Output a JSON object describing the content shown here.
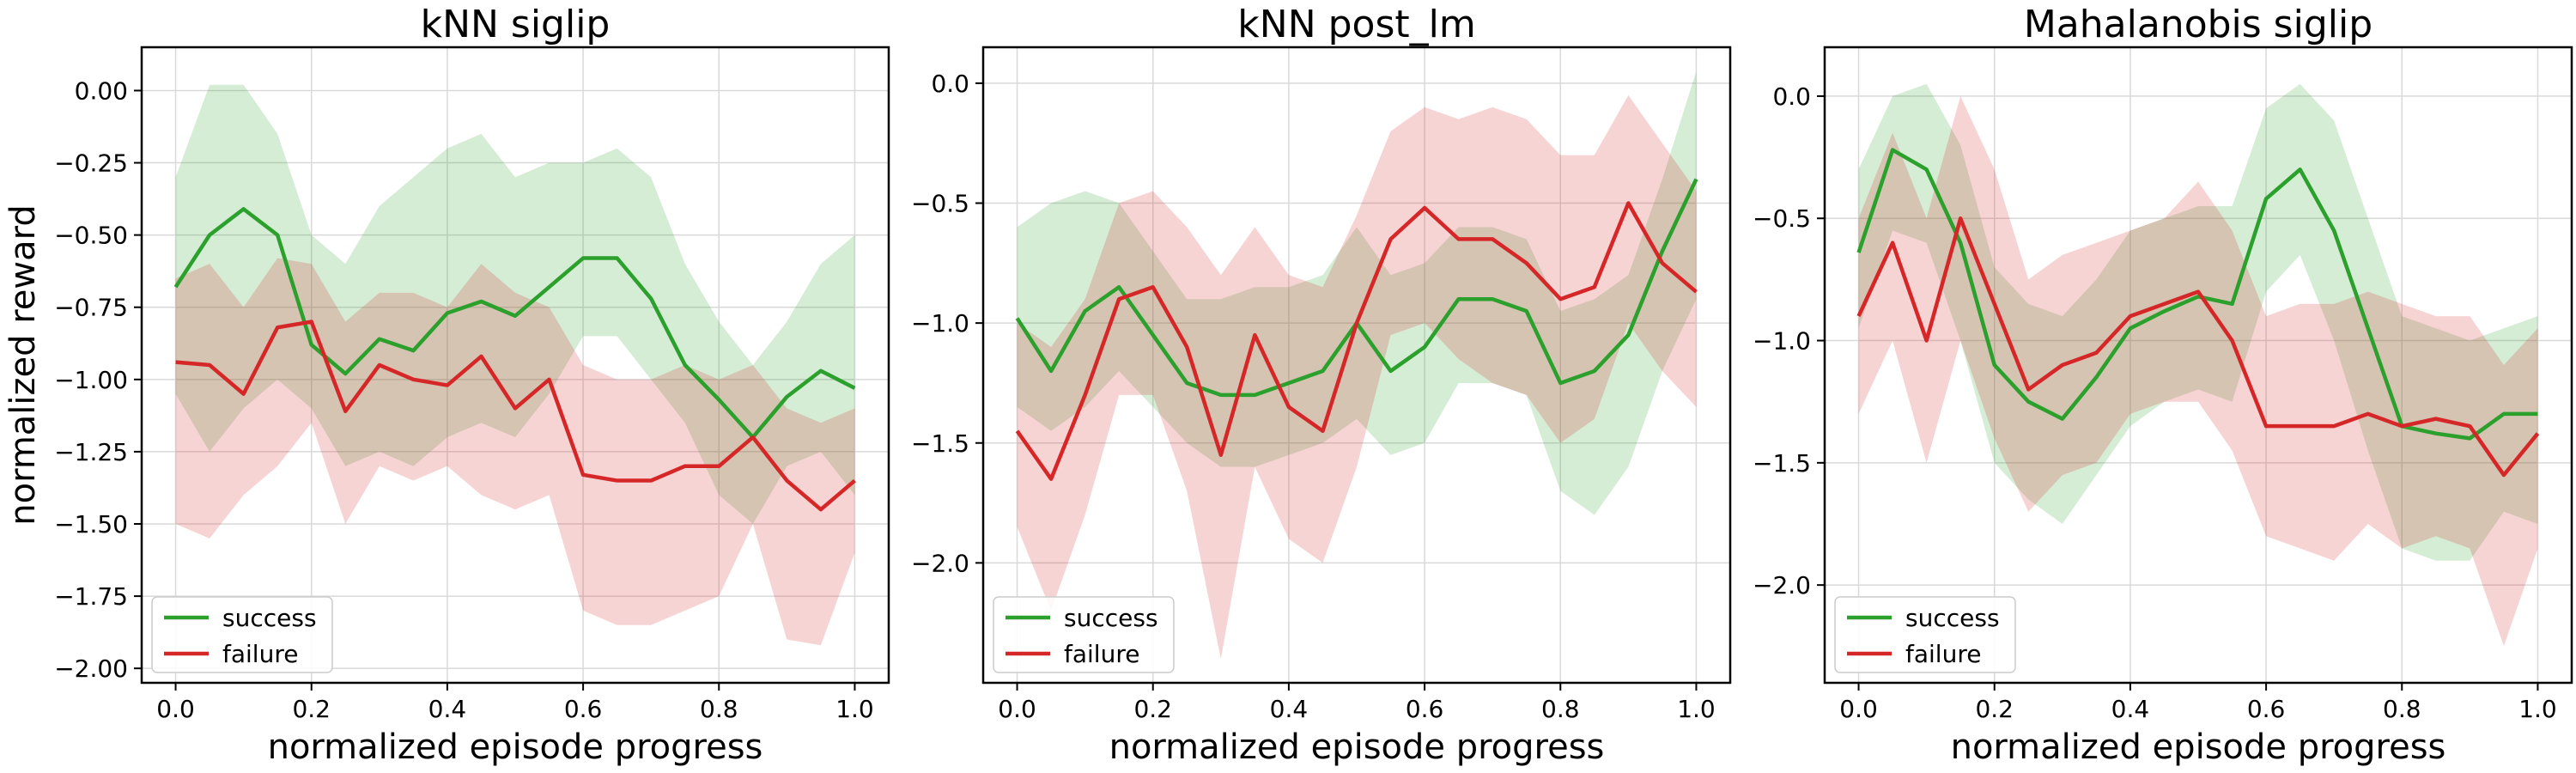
{
  "figure": {
    "ylabel": "normalized reward",
    "colors": {
      "success": "#2ca02c",
      "failure": "#d62728"
    }
  },
  "chart_data": [
    {
      "type": "line",
      "title": "kNN siglip",
      "xlabel": "normalized episode progress",
      "ylabel": "normalized reward",
      "xlim": [
        -0.05,
        1.05
      ],
      "ylim": [
        -2.05,
        0.15
      ],
      "xticks": [
        0.0,
        0.2,
        0.4,
        0.6,
        0.8,
        1.0
      ],
      "xtick_labels": [
        "0.0",
        "0.2",
        "0.4",
        "0.6",
        "0.8",
        "1.0"
      ],
      "yticks": [
        0.0,
        -0.25,
        -0.5,
        -0.75,
        -1.0,
        -1.25,
        -1.5,
        -1.75,
        -2.0
      ],
      "ytick_labels": [
        "0.00",
        "−0.25",
        "−0.50",
        "−0.75",
        "−1.00",
        "−1.25",
        "−1.50",
        "−1.75",
        "−2.00"
      ],
      "grid": true,
      "legend": "lower-left",
      "x": [
        0.0,
        0.05,
        0.1,
        0.15,
        0.2,
        0.25,
        0.3,
        0.35,
        0.4,
        0.45,
        0.5,
        0.55,
        0.6,
        0.65,
        0.7,
        0.75,
        0.8,
        0.85,
        0.9,
        0.95,
        1.0
      ],
      "series": [
        {
          "name": "success",
          "color": "#2ca02c",
          "values": [
            -0.68,
            -0.5,
            -0.41,
            -0.5,
            -0.88,
            -0.98,
            -0.86,
            -0.9,
            -0.77,
            -0.73,
            -0.78,
            -0.68,
            -0.58,
            -0.58,
            -0.72,
            -0.95,
            -1.07,
            -1.2,
            -1.06,
            -0.97,
            -1.03
          ],
          "band_upper": [
            -0.3,
            0.02,
            0.02,
            -0.15,
            -0.5,
            -0.6,
            -0.4,
            -0.3,
            -0.2,
            -0.15,
            -0.3,
            -0.25,
            -0.25,
            -0.2,
            -0.3,
            -0.6,
            -0.8,
            -0.95,
            -0.8,
            -0.6,
            -0.5
          ],
          "band_lower": [
            -1.05,
            -1.25,
            -1.1,
            -1.0,
            -1.1,
            -1.3,
            -1.25,
            -1.3,
            -1.2,
            -1.15,
            -1.2,
            -1.05,
            -0.85,
            -0.85,
            -1.0,
            -1.15,
            -1.4,
            -1.5,
            -1.3,
            -1.25,
            -1.4
          ]
        },
        {
          "name": "failure",
          "color": "#d62728",
          "values": [
            -0.94,
            -0.95,
            -1.05,
            -0.82,
            -0.8,
            -1.11,
            -0.95,
            -1.0,
            -1.02,
            -0.92,
            -1.1,
            -1.0,
            -1.33,
            -1.35,
            -1.35,
            -1.3,
            -1.3,
            -1.2,
            -1.35,
            -1.45,
            -1.35
          ],
          "band_upper": [
            -0.65,
            -0.6,
            -0.75,
            -0.58,
            -0.6,
            -0.8,
            -0.7,
            -0.7,
            -0.75,
            -0.6,
            -0.7,
            -0.75,
            -0.95,
            -1.0,
            -1.0,
            -0.95,
            -1.0,
            -0.95,
            -1.1,
            -1.15,
            -1.1
          ],
          "band_lower": [
            -1.5,
            -1.55,
            -1.4,
            -1.3,
            -1.15,
            -1.5,
            -1.3,
            -1.35,
            -1.3,
            -1.4,
            -1.45,
            -1.4,
            -1.8,
            -1.85,
            -1.85,
            -1.8,
            -1.75,
            -1.5,
            -1.9,
            -1.92,
            -1.6
          ]
        }
      ]
    },
    {
      "type": "line",
      "title": "kNN post_lm",
      "xlabel": "normalized episode progress",
      "xlim": [
        -0.05,
        1.05
      ],
      "ylim": [
        -2.5,
        0.15
      ],
      "xticks": [
        0.0,
        0.2,
        0.4,
        0.6,
        0.8,
        1.0
      ],
      "xtick_labels": [
        "0.0",
        "0.2",
        "0.4",
        "0.6",
        "0.8",
        "1.0"
      ],
      "yticks": [
        0.0,
        -0.5,
        -1.0,
        -1.5,
        -2.0
      ],
      "ytick_labels": [
        "0.0",
        "−0.5",
        "−1.0",
        "−1.5",
        "−2.0"
      ],
      "grid": true,
      "legend": "lower-left",
      "x": [
        0.0,
        0.05,
        0.1,
        0.15,
        0.2,
        0.25,
        0.3,
        0.35,
        0.4,
        0.45,
        0.5,
        0.55,
        0.6,
        0.65,
        0.7,
        0.75,
        0.8,
        0.85,
        0.9,
        0.95,
        1.0
      ],
      "series": [
        {
          "name": "success",
          "color": "#2ca02c",
          "values": [
            -0.98,
            -1.2,
            -0.95,
            -0.85,
            -1.05,
            -1.25,
            -1.3,
            -1.3,
            -1.25,
            -1.2,
            -1.0,
            -1.2,
            -1.1,
            -0.9,
            -0.9,
            -0.95,
            -1.25,
            -1.2,
            -1.05,
            -0.7,
            -0.4
          ],
          "band_upper": [
            -0.6,
            -0.5,
            -0.45,
            -0.5,
            -0.7,
            -0.9,
            -0.9,
            -0.85,
            -0.85,
            -0.8,
            -0.6,
            -0.8,
            -0.75,
            -0.6,
            -0.6,
            -0.65,
            -0.95,
            -0.9,
            -0.8,
            -0.4,
            0.05
          ],
          "band_lower": [
            -1.35,
            -1.45,
            -1.35,
            -1.2,
            -1.35,
            -1.5,
            -1.6,
            -1.6,
            -1.55,
            -1.5,
            -1.4,
            -1.55,
            -1.5,
            -1.25,
            -1.25,
            -1.3,
            -1.7,
            -1.8,
            -1.6,
            -1.2,
            -0.9
          ]
        },
        {
          "name": "failure",
          "color": "#d62728",
          "values": [
            -1.45,
            -1.65,
            -1.3,
            -0.9,
            -0.85,
            -1.1,
            -1.55,
            -1.05,
            -1.35,
            -1.45,
            -1.0,
            -0.65,
            -0.52,
            -0.65,
            -0.65,
            -0.75,
            -0.9,
            -0.85,
            -0.5,
            -0.75,
            -0.87
          ],
          "band_upper": [
            -1.0,
            -1.1,
            -0.9,
            -0.5,
            -0.45,
            -0.6,
            -0.8,
            -0.6,
            -0.8,
            -0.85,
            -0.55,
            -0.2,
            -0.1,
            -0.15,
            -0.1,
            -0.15,
            -0.3,
            -0.3,
            -0.05,
            -0.25,
            -0.45
          ],
          "band_lower": [
            -1.85,
            -2.2,
            -1.8,
            -1.3,
            -1.3,
            -1.7,
            -2.4,
            -1.6,
            -1.9,
            -2.0,
            -1.6,
            -1.05,
            -1.0,
            -1.15,
            -1.25,
            -1.3,
            -1.5,
            -1.4,
            -1.0,
            -1.2,
            -1.35
          ]
        }
      ]
    },
    {
      "type": "line",
      "title": "Mahalanobis siglip",
      "xlabel": "normalized episode progress",
      "xlim": [
        -0.05,
        1.05
      ],
      "ylim": [
        -2.4,
        0.2
      ],
      "xticks": [
        0.0,
        0.2,
        0.4,
        0.6,
        0.8,
        1.0
      ],
      "xtick_labels": [
        "0.0",
        "0.2",
        "0.4",
        "0.6",
        "0.8",
        "1.0"
      ],
      "yticks": [
        0.0,
        -0.5,
        -1.0,
        -1.5,
        -2.0
      ],
      "ytick_labels": [
        "0.0",
        "−0.5",
        "−1.0",
        "−1.5",
        "−2.0"
      ],
      "grid": true,
      "legend": "lower-left",
      "x": [
        0.0,
        0.05,
        0.1,
        0.15,
        0.2,
        0.25,
        0.3,
        0.35,
        0.4,
        0.45,
        0.5,
        0.55,
        0.6,
        0.65,
        0.7,
        0.75,
        0.8,
        0.85,
        0.9,
        0.95,
        1.0
      ],
      "series": [
        {
          "name": "success",
          "color": "#2ca02c",
          "values": [
            -0.64,
            -0.22,
            -0.3,
            -0.6,
            -1.1,
            -1.25,
            -1.32,
            -1.15,
            -0.95,
            -0.88,
            -0.82,
            -0.85,
            -0.42,
            -0.3,
            -0.55,
            -0.95,
            -1.35,
            -1.38,
            -1.4,
            -1.3,
            -1.3
          ],
          "band_upper": [
            -0.3,
            0.0,
            0.05,
            -0.2,
            -0.7,
            -0.85,
            -0.9,
            -0.75,
            -0.55,
            -0.5,
            -0.45,
            -0.45,
            -0.05,
            0.05,
            -0.1,
            -0.5,
            -0.9,
            -0.95,
            -1.0,
            -0.95,
            -0.9
          ],
          "band_lower": [
            -0.95,
            -0.55,
            -0.6,
            -1.0,
            -1.5,
            -1.65,
            -1.75,
            -1.55,
            -1.35,
            -1.25,
            -1.2,
            -1.25,
            -0.8,
            -0.65,
            -1.0,
            -1.45,
            -1.85,
            -1.9,
            -1.9,
            -1.7,
            -1.75
          ]
        },
        {
          "name": "failure",
          "color": "#d62728",
          "values": [
            -0.9,
            -0.6,
            -1.0,
            -0.5,
            -0.85,
            -1.2,
            -1.1,
            -1.05,
            -0.9,
            -0.85,
            -0.8,
            -1.0,
            -1.35,
            -1.35,
            -1.35,
            -1.3,
            -1.35,
            -1.32,
            -1.35,
            -1.55,
            -1.38
          ],
          "band_upper": [
            -0.5,
            -0.15,
            -0.5,
            0.0,
            -0.3,
            -0.75,
            -0.65,
            -0.6,
            -0.55,
            -0.5,
            -0.35,
            -0.55,
            -0.9,
            -0.85,
            -0.85,
            -0.8,
            -0.85,
            -0.9,
            -0.9,
            -1.1,
            -0.95
          ],
          "band_lower": [
            -1.3,
            -1.0,
            -1.5,
            -1.0,
            -1.4,
            -1.7,
            -1.55,
            -1.5,
            -1.3,
            -1.25,
            -1.25,
            -1.45,
            -1.8,
            -1.85,
            -1.9,
            -1.75,
            -1.85,
            -1.8,
            -1.85,
            -2.25,
            -1.85
          ]
        }
      ]
    }
  ]
}
